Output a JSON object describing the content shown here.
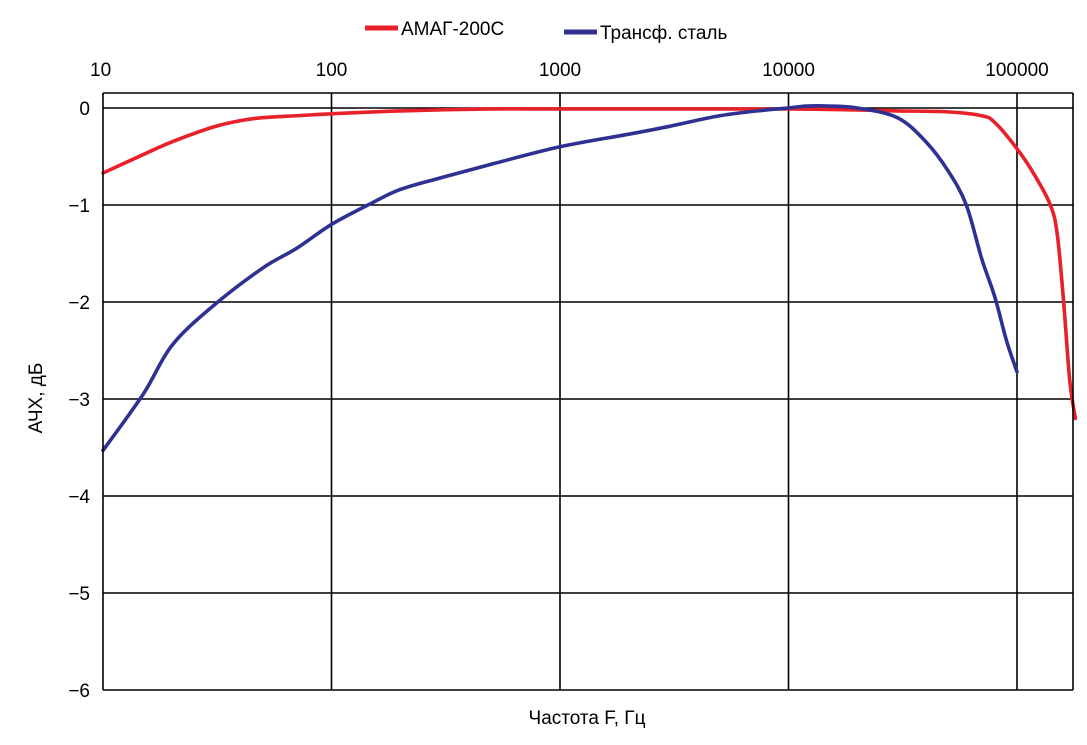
{
  "chart_data": {
    "type": "line",
    "title": "",
    "xlabel": "Частота F, Гц",
    "ylabel": "АЧХ, дБ",
    "x_scale": "log",
    "xlim": [
      10,
      180000
    ],
    "ylim": [
      -6,
      0.1
    ],
    "x_ticks": [
      10,
      100,
      1000,
      10000,
      100000
    ],
    "x_tick_labels": [
      "10",
      "100",
      "1000",
      "10000",
      "100000"
    ],
    "y_ticks": [
      0,
      -1,
      -2,
      -3,
      -4,
      -5,
      -6
    ],
    "y_tick_labels": [
      "0",
      "−1",
      "−2",
      "−3",
      "−4",
      "−5",
      "−6"
    ],
    "grid": true,
    "legend_position": "top-center",
    "series": [
      {
        "name": "АМАГ-200С",
        "color": "#e8202a",
        "x": [
          10,
          15,
          20,
          30,
          40,
          50,
          70,
          100,
          200,
          500,
          1000,
          3000,
          10000,
          20000,
          30000,
          50000,
          70000,
          80000,
          100000,
          120000,
          140000,
          150000,
          160000,
          170000,
          180000
        ],
        "y": [
          -0.67,
          -0.48,
          -0.35,
          -0.2,
          -0.13,
          -0.1,
          -0.08,
          -0.06,
          -0.03,
          -0.01,
          -0.01,
          -0.01,
          -0.01,
          -0.02,
          -0.03,
          -0.04,
          -0.08,
          -0.15,
          -0.42,
          -0.7,
          -1.0,
          -1.3,
          -2.0,
          -2.8,
          -3.2
        ]
      },
      {
        "name": "Трансф. сталь",
        "color": "#2e3192",
        "x": [
          10,
          15,
          20,
          30,
          50,
          70,
          100,
          150,
          200,
          300,
          500,
          1000,
          2000,
          3000,
          5000,
          8000,
          10000,
          12000,
          15000,
          20000,
          30000,
          40000,
          50000,
          60000,
          70000,
          80000,
          90000,
          100000
        ],
        "y": [
          -3.53,
          -2.95,
          -2.45,
          -2.05,
          -1.65,
          -1.45,
          -1.2,
          -0.98,
          -0.84,
          -0.72,
          -0.58,
          -0.4,
          -0.27,
          -0.19,
          -0.08,
          -0.02,
          0.0,
          0.02,
          0.02,
          0.0,
          -0.1,
          -0.35,
          -0.65,
          -1.0,
          -1.55,
          -1.95,
          -2.4,
          -2.72
        ]
      }
    ]
  }
}
